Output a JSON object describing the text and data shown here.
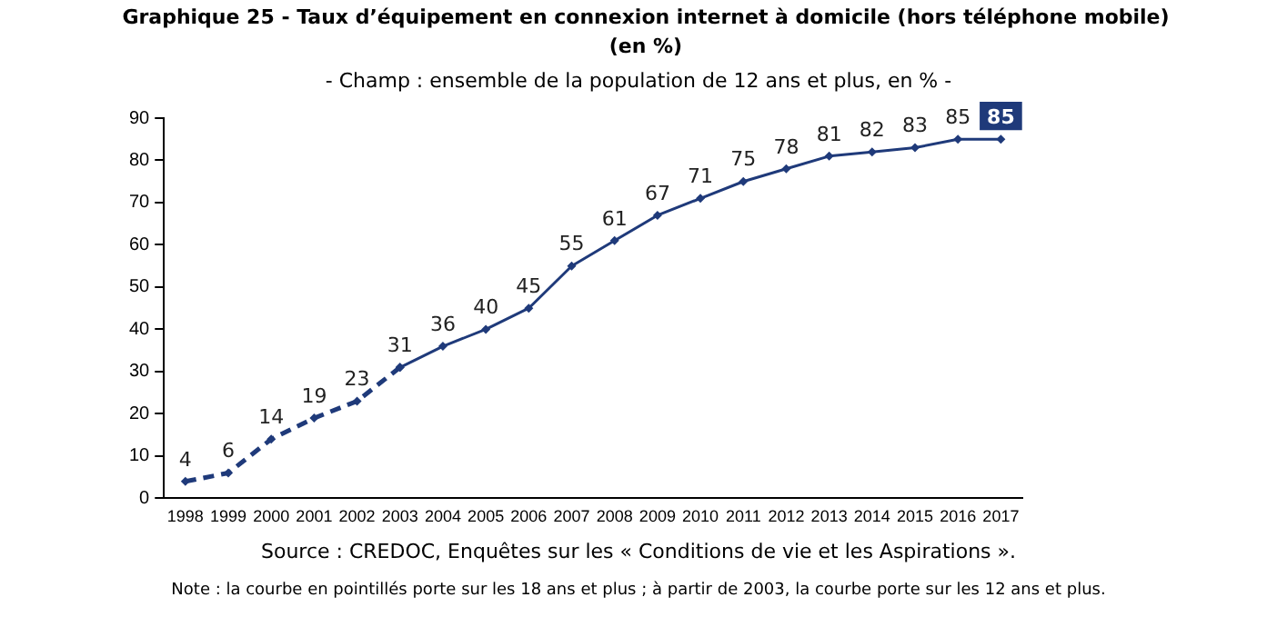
{
  "chart_data": {
    "type": "line",
    "title": "Graphique 25 - Taux d’équipement en connexion internet à domicile (hors téléphone mobile) (en %)",
    "subtitle": "- Champ : ensemble de la population de 12 ans et plus, en % -",
    "categories": [
      "1998",
      "1999",
      "2000",
      "2001",
      "2002",
      "2003",
      "2004",
      "2005",
      "2006",
      "2007",
      "2008",
      "2009",
      "2010",
      "2011",
      "2012",
      "2013",
      "2014",
      "2015",
      "2016",
      "2017"
    ],
    "series": [
      {
        "color": "#1f3a7a",
        "line_style": "dashed",
        "values": [
          4,
          6,
          14,
          19,
          23,
          31,
          null,
          null,
          null,
          null,
          null,
          null,
          null,
          null,
          null,
          null,
          null,
          null,
          null,
          null
        ],
        "value_labels": [
          "4",
          "6",
          "14",
          "19",
          "23",
          null,
          null,
          null,
          null,
          null,
          null,
          null,
          null,
          null,
          null,
          null,
          null,
          null,
          null,
          null
        ]
      },
      {
        "color": "#1f3a7a",
        "line_style": "solid",
        "values": [
          null,
          null,
          null,
          null,
          null,
          31,
          36,
          40,
          45,
          55,
          61,
          67,
          71,
          75,
          78,
          81,
          82,
          83,
          85,
          85
        ],
        "value_labels": [
          null,
          null,
          null,
          null,
          null,
          "31",
          "36",
          "40",
          "45",
          "55",
          "61",
          "67",
          "71",
          "75",
          "78",
          "81",
          "82",
          "83",
          "85",
          "85"
        ]
      }
    ],
    "ylim": [
      0,
      90
    ],
    "yticks": [
      0,
      10,
      20,
      30,
      40,
      50,
      60,
      70,
      80,
      90
    ],
    "grid": false,
    "legend": false,
    "marker": "diamond",
    "annotations": [
      "Source : CREDOC, Enquêtes sur les « Conditions de vie et les Aspirations ».",
      "Note : la courbe en pointillés porte sur les 18 ans et plus ; à partir de 2003, la courbe porte sur les 12 ans et plus."
    ]
  }
}
